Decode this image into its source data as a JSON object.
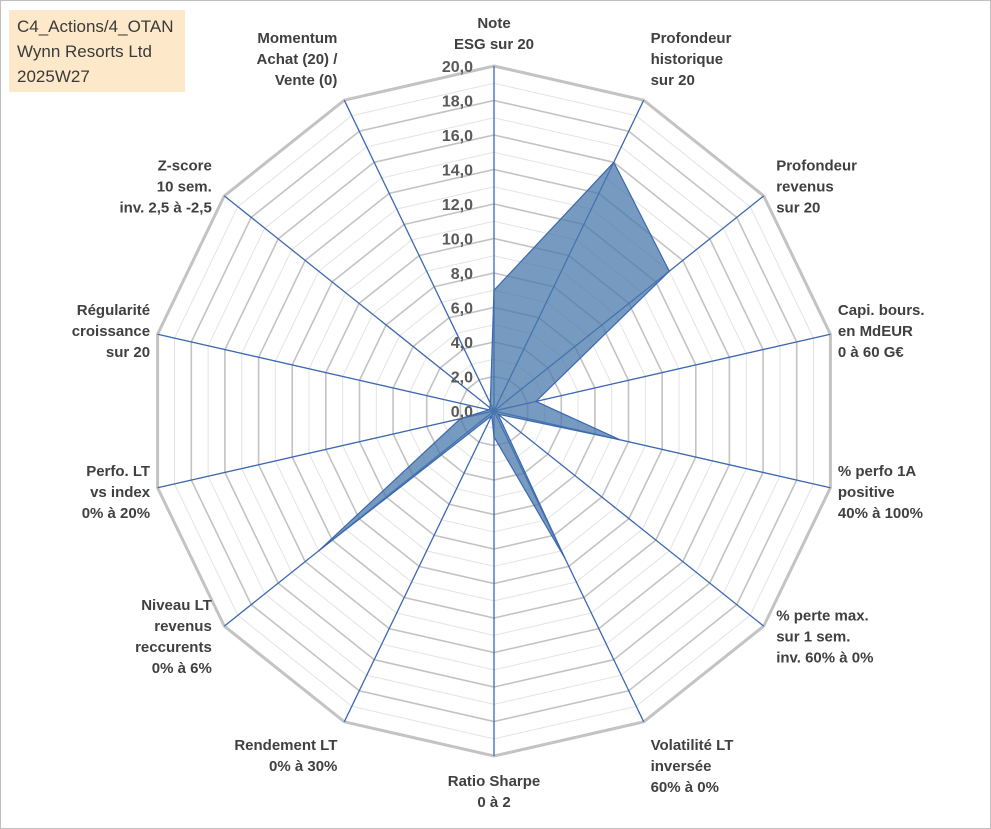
{
  "info_box": {
    "line1": "C4_Actions/4_OTAN",
    "line2": "Wynn Resorts Ltd",
    "line3": "2025W27"
  },
  "chart_data": {
    "type": "radar",
    "title": "",
    "ylim": [
      0,
      20
    ],
    "tick_step": 2,
    "grid_step": 1,
    "tick_labels": [
      "0,0",
      "2,0",
      "4,0",
      "6,0",
      "8,0",
      "10,0",
      "12,0",
      "14,0",
      "16,0",
      "18,0",
      "20,0"
    ],
    "categories": [
      [
        "Note",
        "ESG sur 20"
      ],
      [
        "Profondeur",
        "historique",
        "sur 20"
      ],
      [
        "Profondeur",
        "revenus",
        "sur 20"
      ],
      [
        "Capi. bours.",
        "en MdEUR",
        "0 à 60 G€"
      ],
      [
        "% perfo 1A",
        "positive",
        "40% à 100%"
      ],
      [
        "% perte max.",
        "sur 1 sem.",
        "inv. 60% à 0%"
      ],
      [
        "Volatilité LT",
        "inversée",
        "60% à 0%"
      ],
      [
        "Ratio Sharpe",
        "0 à 2"
      ],
      [
        "Rendement LT",
        "0% à 30%"
      ],
      [
        "Niveau LT",
        "revenus",
        "reccurents",
        "0% à 6%"
      ],
      [
        "Perfo. LT",
        "vs index",
        "0% à 20%"
      ],
      [
        "Régularité",
        "croissance",
        "sur 20"
      ],
      [
        "Z-score",
        "10 sem.",
        "inv. 2,5 à -2,5"
      ],
      [
        "Momentum",
        "Achat (20) /",
        "Vente (0)"
      ]
    ],
    "series": [
      {
        "values": [
          7.0,
          16.0,
          13.0,
          2.5,
          7.5,
          0.3,
          9.5,
          1.5,
          0.3,
          13.0,
          2.0,
          0.3,
          0.3,
          0.5
        ]
      }
    ],
    "colors": {
      "fill": "#4a78ac",
      "fill_opacity": 0.75,
      "axis": "#3c68b0",
      "grid_major": "#c3c3c3",
      "grid_minor": "#e3e3e3"
    }
  }
}
